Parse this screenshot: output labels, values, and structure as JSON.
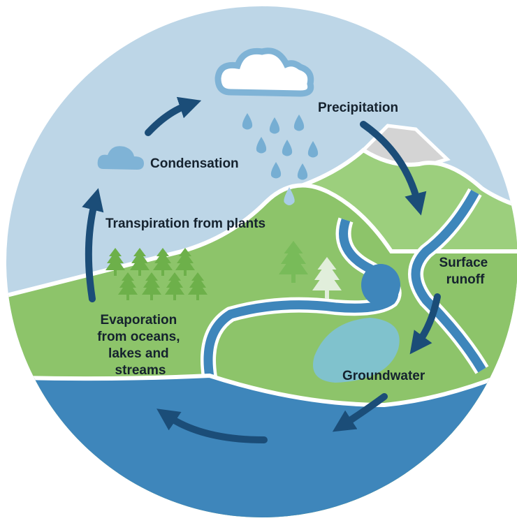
{
  "labels": {
    "precipitation": "Precipitation",
    "condensation": "Condensation",
    "transpiration": "Transpiration from plants",
    "surface_runoff": [
      "Surface",
      "runoff"
    ],
    "evaporation": [
      "Evaporation",
      "from oceans,",
      "lakes and",
      "streams"
    ],
    "groundwater": "Groundwater"
  }
}
